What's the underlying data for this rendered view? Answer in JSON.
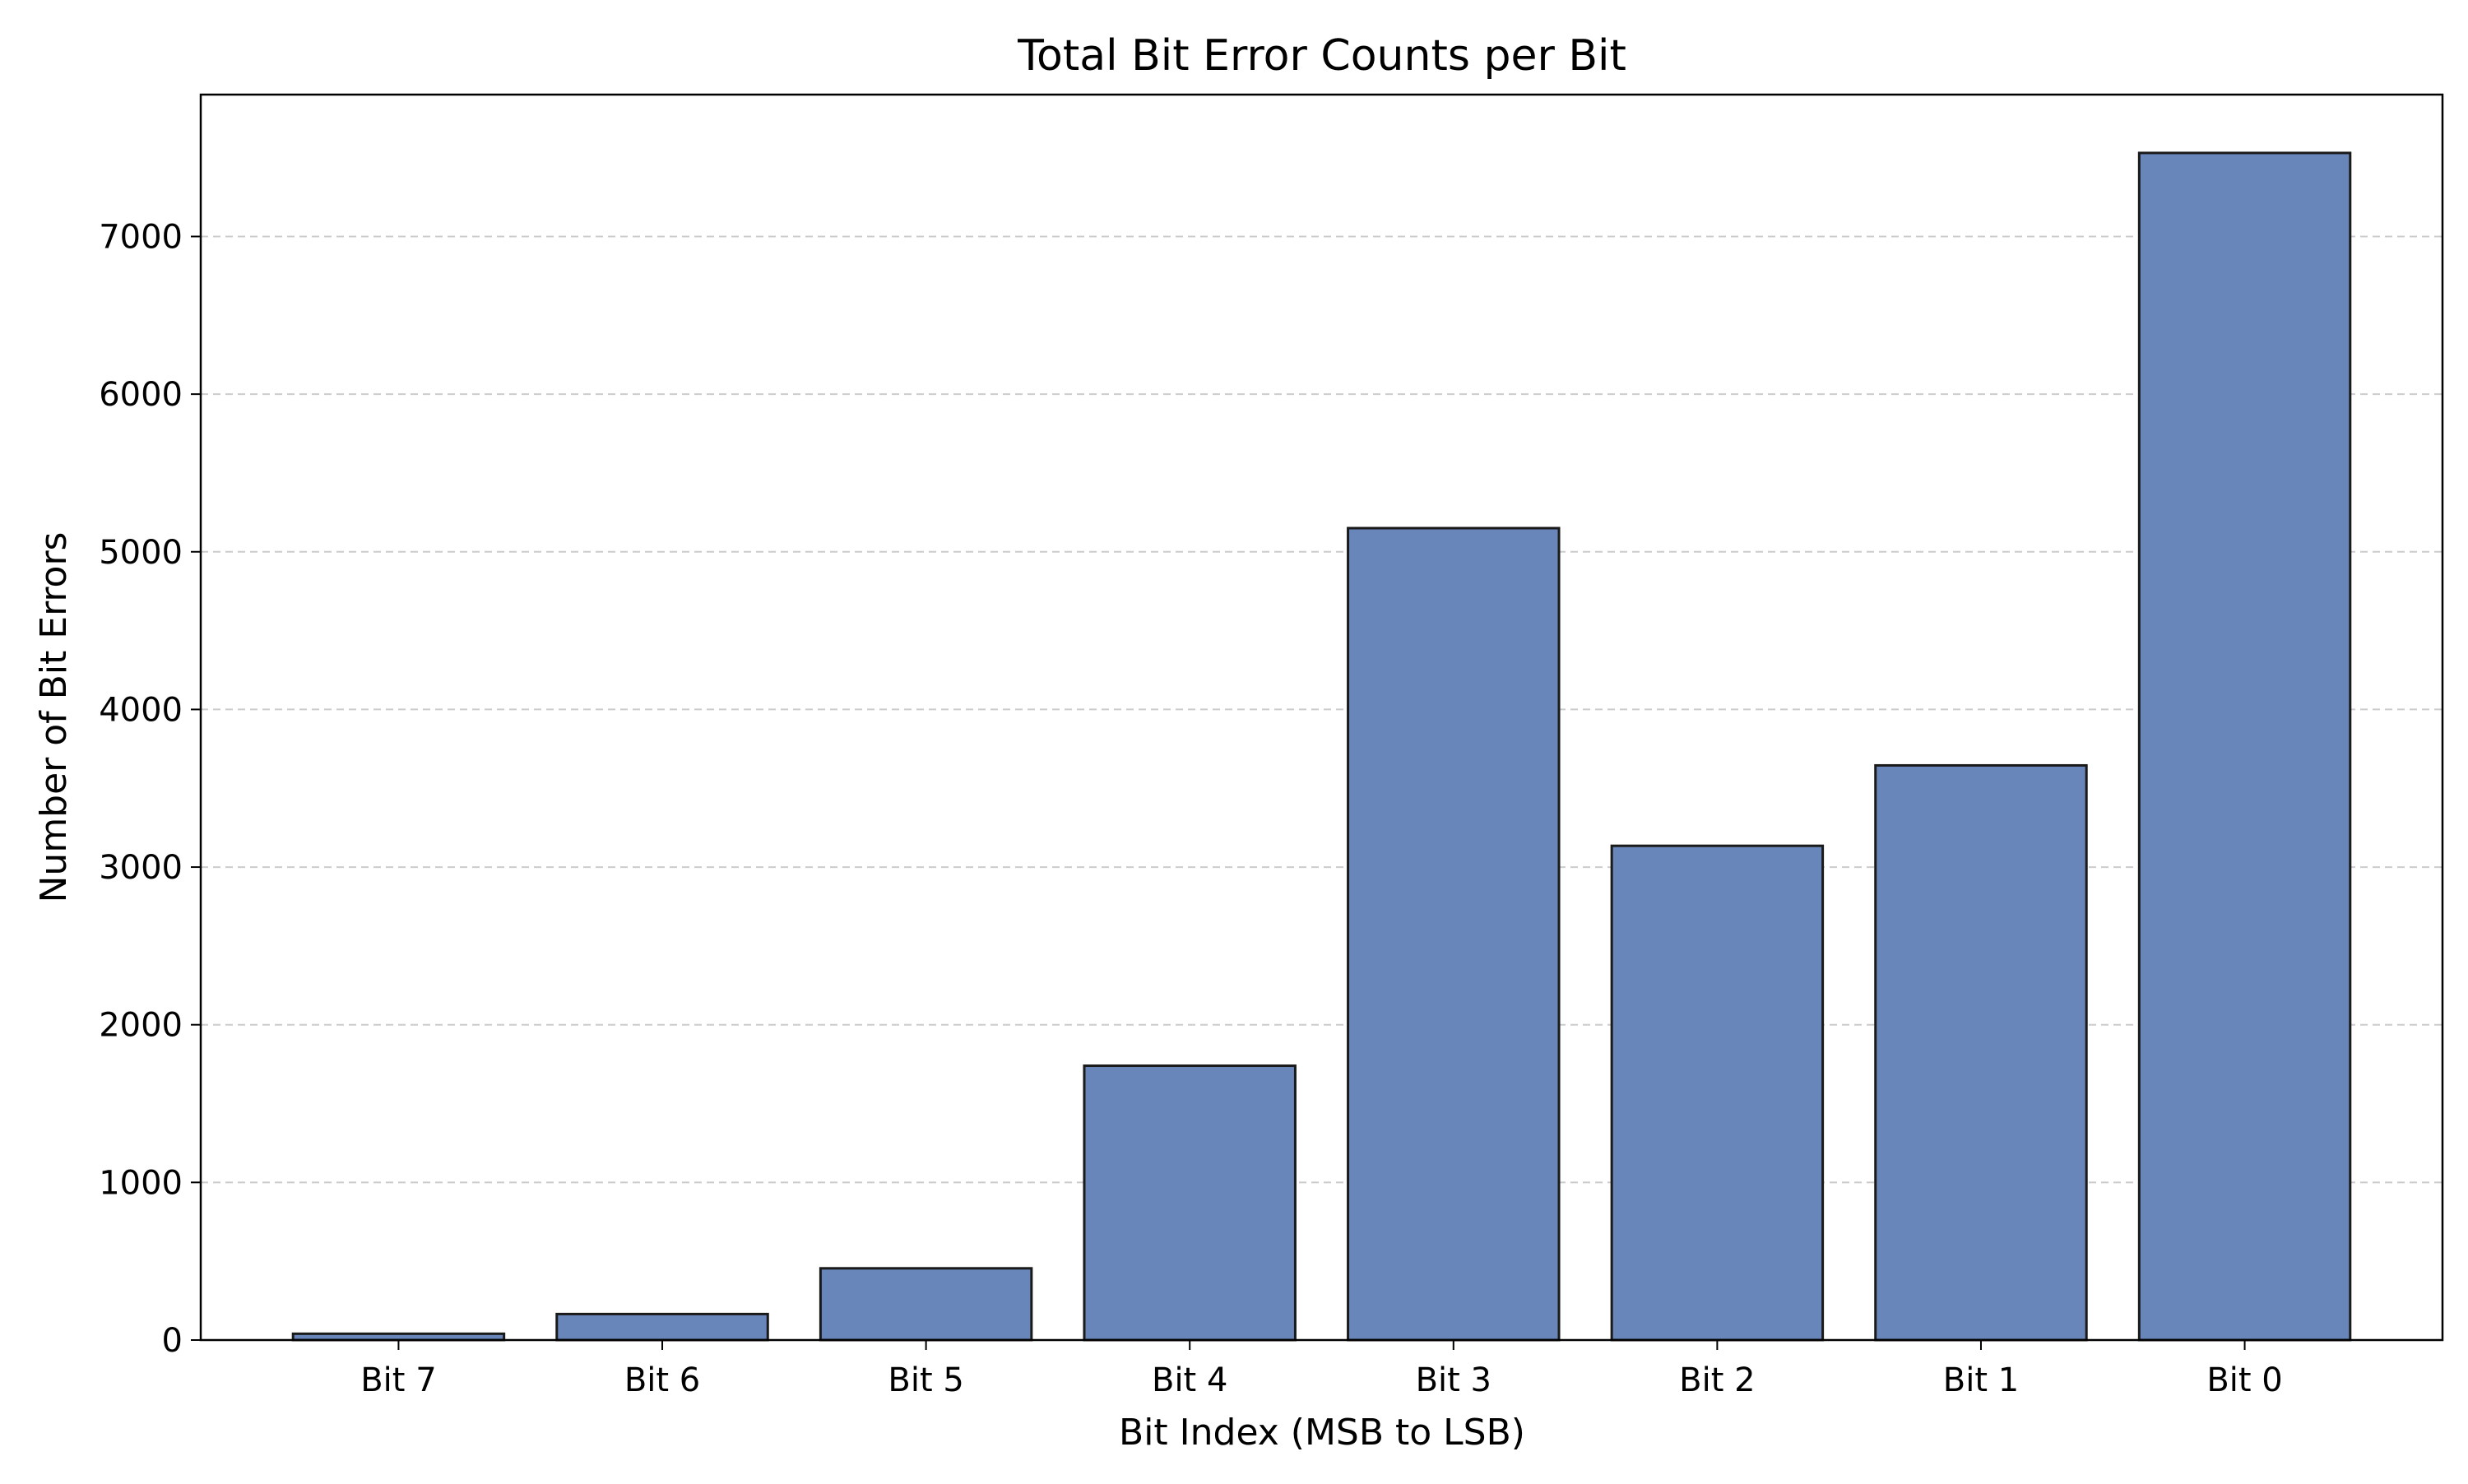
{
  "chart_data": {
    "type": "bar",
    "title": "Total Bit Error Counts per Bit",
    "xlabel": "Bit Index (MSB to LSB)",
    "ylabel": "Number of Bit Errors",
    "categories": [
      "Bit 7",
      "Bit 6",
      "Bit 5",
      "Bit 4",
      "Bit 3",
      "Bit 2",
      "Bit 1",
      "Bit 0"
    ],
    "values": [
      40,
      165,
      455,
      1740,
      5150,
      3135,
      3645,
      7530
    ],
    "ylim": [
      0,
      7900
    ],
    "yticks": [
      0,
      1000,
      2000,
      3000,
      4000,
      5000,
      6000,
      7000
    ],
    "grid": "y-dashed",
    "legend": "none",
    "colors": {
      "bar_fill": "#6886b9",
      "bar_edge": "#1a1a1a",
      "grid": "#cccccc",
      "axes": "#000000"
    }
  }
}
